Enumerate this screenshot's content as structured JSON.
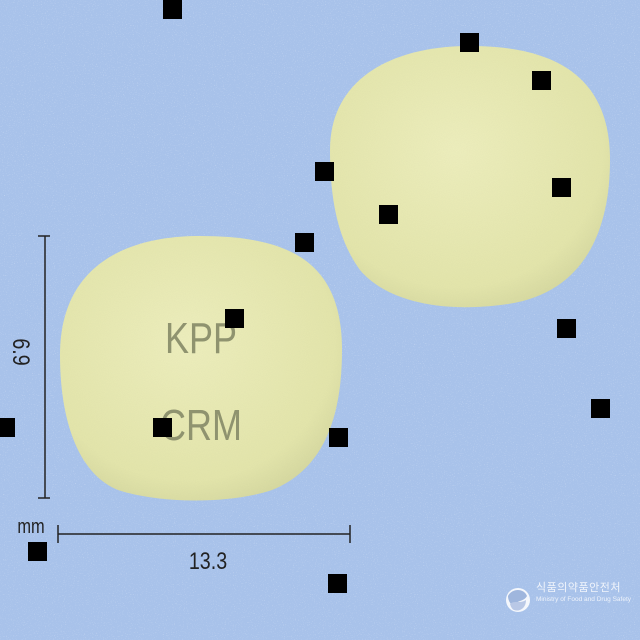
{
  "photo": {
    "background_color": "#a8c2ea",
    "tablet_color": "#e8eab0",
    "imprint_color": "#8f936f",
    "imprint_lines": [
      "KPP",
      "CRM"
    ]
  },
  "dimensions": {
    "height_label": "6.9",
    "width_label": "13.3",
    "unit": "mm"
  },
  "logo": {
    "text_ko": "식품의약품안전처",
    "text_en": "Ministry of Food and Drug Safety"
  }
}
